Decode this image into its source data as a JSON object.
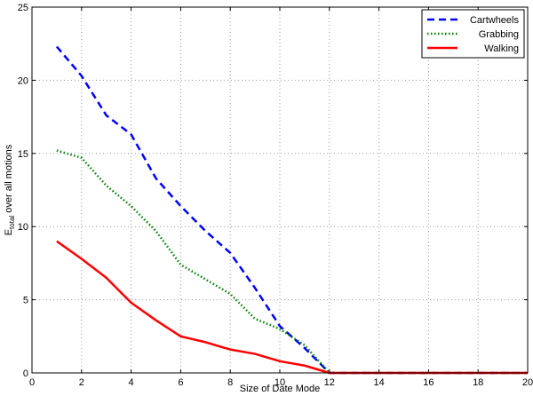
{
  "chart_data": {
    "type": "line",
    "title": "",
    "xlabel": "Size of Date Mode",
    "ylabel": "E_total over all motions",
    "ylabel_parts": {
      "symbol": "E",
      "subscript": "total",
      "rest": " over all motions"
    },
    "xlim": [
      0,
      20
    ],
    "ylim": [
      0,
      25
    ],
    "xticks": [
      0,
      2,
      4,
      6,
      8,
      10,
      12,
      14,
      16,
      18,
      20
    ],
    "yticks": [
      0,
      5,
      10,
      15,
      20,
      25
    ],
    "grid": true,
    "legend_position": "top-right",
    "series": [
      {
        "name": "Cartwheels",
        "color": "#0000ff",
        "style": "dashed",
        "x": [
          1,
          2,
          3,
          4,
          5,
          6,
          7,
          8,
          9,
          10,
          11,
          12,
          13,
          14,
          15,
          16,
          17,
          18,
          19,
          20
        ],
        "y": [
          22.3,
          20.3,
          17.6,
          16.3,
          13.3,
          11.4,
          9.7,
          8.2,
          5.8,
          3.2,
          1.7,
          0,
          0,
          0,
          0,
          0,
          0,
          0,
          0,
          0
        ]
      },
      {
        "name": "Grabbing",
        "color": "#008000",
        "style": "dotted",
        "x": [
          1,
          2,
          3,
          4,
          5,
          6,
          7,
          8,
          9,
          10,
          11,
          12,
          13,
          14,
          15,
          16,
          17,
          18,
          19,
          20
        ],
        "y": [
          15.2,
          14.7,
          12.8,
          11.4,
          9.7,
          7.4,
          6.4,
          5.4,
          3.7,
          3.0,
          1.9,
          0,
          0,
          0,
          0,
          0,
          0,
          0,
          0,
          0
        ]
      },
      {
        "name": "Walking",
        "color": "#ff0000",
        "style": "solid",
        "x": [
          1,
          2,
          3,
          4,
          5,
          6,
          7,
          8,
          9,
          10,
          11,
          12,
          13,
          14,
          15,
          16,
          17,
          18,
          19,
          20
        ],
        "y": [
          9.0,
          7.8,
          6.5,
          4.8,
          3.6,
          2.5,
          2.1,
          1.6,
          1.3,
          0.8,
          0.5,
          0,
          0,
          0,
          0,
          0,
          0,
          0,
          0,
          0
        ]
      }
    ]
  }
}
